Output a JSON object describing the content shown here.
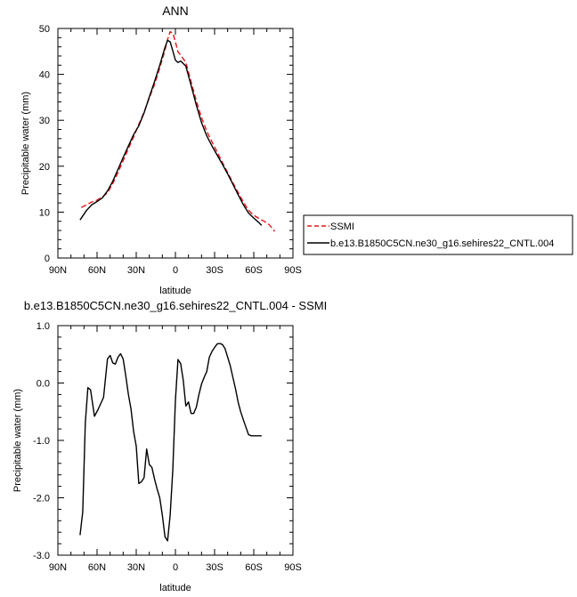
{
  "chart_data": [
    {
      "type": "line",
      "title": "ANN",
      "xlabel": "latitude",
      "ylabel": "Precipitable water (mm)",
      "xlim": [
        90,
        -90
      ],
      "ylim": [
        0,
        50
      ],
      "grid": false,
      "x_ticks": [
        90,
        60,
        30,
        0,
        -30,
        -60,
        -90
      ],
      "x_tick_labels": [
        "90N",
        "60N",
        "30N",
        "0",
        "30S",
        "60S",
        "90S"
      ],
      "y_ticks": [
        0,
        10,
        20,
        30,
        40,
        50
      ],
      "y_tick_labels": [
        "0",
        "10",
        "20",
        "30",
        "40",
        "50"
      ],
      "legend": {
        "placement": "right-outside",
        "entries": [
          "SSMI",
          "b.e13.B1850C5CN.ne30_g16.sehires22_CNTL.004"
        ]
      },
      "series": [
        {
          "name": "SSMI",
          "color": "#e8141a",
          "style": "dashed",
          "x": [
            72,
            68,
            64,
            60,
            56,
            52,
            48,
            44,
            40,
            36,
            32,
            28,
            24,
            20,
            16,
            12,
            8,
            6,
            4,
            2,
            0,
            -2,
            -4,
            -8,
            -12,
            -16,
            -20,
            -24,
            -28,
            -32,
            -36,
            -40,
            -44,
            -48,
            -52,
            -56,
            -60,
            -64,
            -68,
            -72,
            -76
          ],
          "y": [
            11,
            11.6,
            12.2,
            12.6,
            13.3,
            14.2,
            16.2,
            18.6,
            21.2,
            23.8,
            26.4,
            29.1,
            31.8,
            34.9,
            37.8,
            41.4,
            45.3,
            47.6,
            49.3,
            49,
            47.1,
            44.9,
            44.2,
            42.6,
            38.4,
            34.2,
            30.6,
            27.6,
            25.3,
            23.1,
            20.8,
            18.6,
            16.4,
            14.3,
            12.2,
            10.4,
            9.3,
            8.6,
            8.0,
            7.2,
            5.8
          ]
        },
        {
          "name": "b.e13.B1850C5CN.ne30_g16.sehires22_CNTL.004",
          "color": "#000000",
          "style": "solid",
          "x": [
            73,
            68,
            64,
            60,
            56,
            52,
            48,
            44,
            40,
            36,
            32,
            28,
            24,
            20,
            16,
            12,
            8,
            6,
            4,
            2,
            0,
            -2,
            -4,
            -8,
            -12,
            -16,
            -20,
            -24,
            -28,
            -32,
            -36,
            -40,
            -44,
            -48,
            -52,
            -56,
            -60,
            -64,
            -66
          ],
          "y": [
            8.3,
            10.4,
            11.6,
            12.3,
            13.1,
            14.6,
            16.7,
            19.3,
            21.9,
            24.4,
            26.9,
            28.8,
            31.6,
            35.1,
            38.4,
            42.0,
            45.9,
            47.4,
            47.1,
            45.1,
            43.1,
            42.6,
            42.9,
            41.8,
            37.6,
            33.3,
            29.5,
            26.6,
            24.4,
            22.4,
            20.4,
            18.3,
            16.1,
            13.8,
            11.6,
            9.8,
            8.7,
            7.7,
            7.1
          ]
        }
      ]
    },
    {
      "type": "line",
      "title": "b.e13.B1850C5CN.ne30_g16.sehires22_CNTL.004 - SSMI",
      "xlabel": "latitude",
      "ylabel": "Precipitable water (mm)",
      "xlim": [
        90,
        -90
      ],
      "ylim": [
        -3,
        1
      ],
      "grid": false,
      "x_ticks": [
        90,
        60,
        30,
        0,
        -30,
        -60,
        -90
      ],
      "x_tick_labels": [
        "90N",
        "60N",
        "30N",
        "0",
        "30S",
        "60S",
        "90S"
      ],
      "y_ticks": [
        -3,
        -2,
        -1,
        0,
        1
      ],
      "y_tick_labels": [
        "-3.0",
        "-2.0",
        "-1.0",
        "0.0",
        "1.0"
      ],
      "series": [
        {
          "color": "#000000",
          "style": "solid",
          "x": [
            73,
            71,
            69,
            67,
            65,
            62,
            59,
            55,
            52,
            50,
            48,
            46,
            44,
            42,
            40,
            38,
            36,
            34,
            32,
            30,
            28,
            26,
            24,
            22,
            20,
            18,
            16,
            14,
            12,
            10,
            8,
            6,
            4,
            2,
            0,
            -2,
            -4,
            -6,
            -8,
            -10,
            -12,
            -14,
            -16,
            -18,
            -20,
            -22,
            -24,
            -26,
            -28,
            -30,
            -32,
            -34,
            -36,
            -38,
            -40,
            -42,
            -44,
            -46,
            -48,
            -50,
            -52,
            -54,
            -56,
            -58,
            -60,
            -62,
            -64,
            -66
          ],
          "y": [
            -2.65,
            -2.25,
            -0.7,
            -0.08,
            -0.12,
            -0.58,
            -0.45,
            -0.25,
            0.42,
            0.48,
            0.35,
            0.33,
            0.45,
            0.51,
            0.42,
            0.12,
            -0.2,
            -0.45,
            -0.85,
            -1.1,
            -1.75,
            -1.72,
            -1.65,
            -1.15,
            -1.42,
            -1.47,
            -1.67,
            -1.85,
            -2.0,
            -2.3,
            -2.68,
            -2.75,
            -2.3,
            -1.5,
            -0.3,
            0.41,
            0.34,
            0.05,
            -0.4,
            -0.33,
            -0.53,
            -0.53,
            -0.42,
            -0.2,
            -0.02,
            0.1,
            0.2,
            0.45,
            0.55,
            0.62,
            0.68,
            0.69,
            0.67,
            0.6,
            0.45,
            0.3,
            0.1,
            -0.1,
            -0.33,
            -0.5,
            -0.64,
            -0.77,
            -0.9,
            -0.92,
            -0.92,
            -0.92,
            -0.92,
            -0.92
          ]
        }
      ]
    }
  ]
}
